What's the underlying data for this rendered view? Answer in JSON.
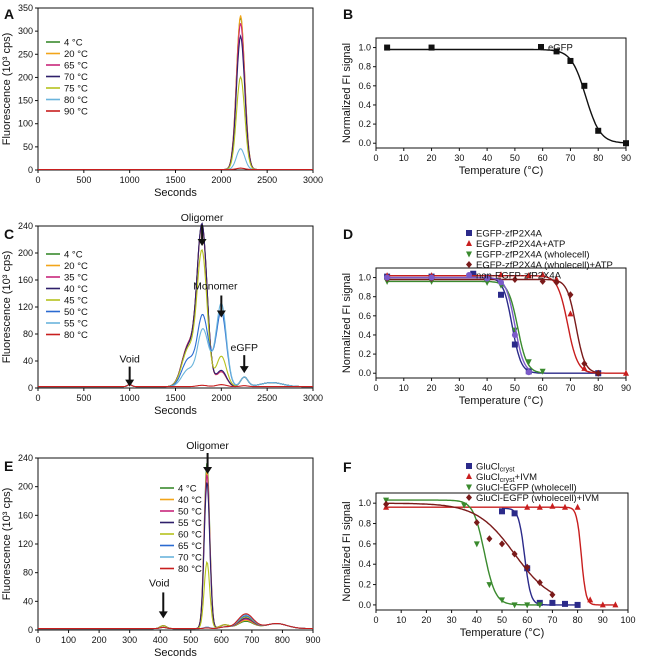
{
  "chart_data": [
    {
      "panel": "A",
      "type": "line",
      "xlabel": "Seconds",
      "ylabel": "Fluorescence (10³ cps)",
      "xlim": [
        0,
        3000
      ],
      "ylim": [
        0,
        350
      ],
      "xticks": [
        0,
        500,
        1000,
        1500,
        2000,
        2500,
        3000
      ],
      "yticks": [
        0,
        50,
        100,
        150,
        200,
        250,
        300,
        350
      ],
      "legend": "top-left",
      "peak": {
        "center": 2210,
        "sigma": 45
      },
      "series": [
        {
          "name": "4 °C",
          "color": "#3a8a2e",
          "peak": 330
        },
        {
          "name": "20 °C",
          "color": "#f2a51a",
          "peak": 333
        },
        {
          "name": "65 °C",
          "color": "#c8277b",
          "peak": 316
        },
        {
          "name": "70 °C",
          "color": "#2e1f6b",
          "peak": 288
        },
        {
          "name": "75 °C",
          "color": "#b6c21e",
          "peak": 200
        },
        {
          "name": "80 °C",
          "color": "#6ab4dc",
          "peak": 45
        },
        {
          "name": "90 °C",
          "color": "#c81e1e",
          "peak": 3
        }
      ]
    },
    {
      "panel": "B",
      "type": "scatter",
      "xlabel": "Temperature (°C)",
      "ylabel": "Normalized FI signal",
      "xlim": [
        0,
        90
      ],
      "ylim": [
        -0.05,
        1.1
      ],
      "xticks": [
        0,
        10,
        20,
        30,
        40,
        50,
        60,
        70,
        80,
        90
      ],
      "yticks": [
        0.0,
        0.2,
        0.4,
        0.6,
        0.8,
        1.0
      ],
      "legend": "top-right",
      "series": [
        {
          "name": "eGFP",
          "color": "#111111",
          "marker": "square",
          "x": [
            4,
            20,
            65,
            70,
            75,
            80,
            90
          ],
          "y": [
            1.0,
            1.0,
            0.96,
            0.86,
            0.6,
            0.13,
            0.0
          ],
          "fit": {
            "tm": 75.5,
            "k": 2.6,
            "top": 0.98,
            "bottom": 0.0
          }
        }
      ]
    },
    {
      "panel": "C",
      "type": "line",
      "xlabel": "Seconds",
      "ylabel": "Fluorescence (10³ cps)",
      "xlim": [
        0,
        3000
      ],
      "ylim": [
        0,
        240
      ],
      "xticks": [
        0,
        500,
        1000,
        1500,
        2000,
        2500,
        3000
      ],
      "yticks": [
        0,
        40,
        80,
        120,
        160,
        200,
        240
      ],
      "legend": "top-left",
      "annotations": [
        {
          "label": "Oligomer",
          "x": 1790,
          "y": 240
        },
        {
          "label": "Monomer",
          "x": 2000,
          "y": 140
        },
        {
          "label": "eGFP",
          "x": 2250,
          "y": 25
        },
        {
          "label": "Void",
          "x": 1000,
          "y": 5
        }
      ],
      "series": [
        {
          "name": "4 °C",
          "color": "#3a8a2e",
          "olig": 235,
          "mono": 22,
          "shoulder": 60
        },
        {
          "name": "20 °C",
          "color": "#f2a51a",
          "olig": 232,
          "mono": 22,
          "shoulder": 60
        },
        {
          "name": "35 °C",
          "color": "#c8277b",
          "olig": 234,
          "mono": 22,
          "shoulder": 60
        },
        {
          "name": "40 °C",
          "color": "#2e1f6b",
          "olig": 236,
          "mono": 24,
          "shoulder": 58
        },
        {
          "name": "45 °C",
          "color": "#b6c21e",
          "olig": 197,
          "mono": 45,
          "shoulder": 55
        },
        {
          "name": "50 °C",
          "color": "#2a6bd1",
          "olig": 90,
          "mono": 110,
          "shoulder": 40
        },
        {
          "name": "55 °C",
          "color": "#6ab4dc",
          "olig": 70,
          "mono": 122,
          "shoulder": 25
        },
        {
          "name": "80 °C",
          "color": "#c81e1e",
          "olig": 2,
          "mono": 3,
          "shoulder": 0
        }
      ]
    },
    {
      "panel": "D",
      "type": "scatter",
      "xlabel": "Temperature (°C)",
      "ylabel": "Normalized FI signal",
      "xlim": [
        0,
        90
      ],
      "ylim": [
        -0.05,
        1.1
      ],
      "xticks": [
        0,
        10,
        20,
        30,
        40,
        50,
        60,
        70,
        80,
        90
      ],
      "yticks": [
        0.0,
        0.2,
        0.4,
        0.6,
        0.8,
        1.0
      ],
      "legend": "top-right",
      "series": [
        {
          "name": "EGFP-zfP2X4A",
          "color": "#2b2a8a",
          "marker": "square",
          "x": [
            4,
            20,
            35,
            40,
            45,
            50,
            55,
            80
          ],
          "y": [
            1.01,
            1.01,
            1.04,
            1.0,
            0.82,
            0.3,
            0.02,
            0.0
          ],
          "fit": {
            "tm": 49,
            "k": 1.6,
            "top": 1.0,
            "bottom": 0.0
          }
        },
        {
          "name": "EGFP-zfP2X4A+ATP",
          "color": "#c81e1e",
          "marker": "triangle-up",
          "x": [
            4,
            20,
            45,
            55,
            60,
            65,
            70,
            75,
            90
          ],
          "y": [
            1.02,
            1.02,
            1.03,
            1.02,
            1.03,
            0.98,
            0.62,
            0.05,
            0.0
          ],
          "fit": {
            "tm": 69,
            "k": 1.8,
            "top": 1.02,
            "bottom": 0.0
          }
        },
        {
          "name": "EGFP-zfP2X4A (wholecell)",
          "color": "#3a8a2e",
          "marker": "triangle-down",
          "x": [
            4,
            20,
            40,
            45,
            50,
            55,
            60
          ],
          "y": [
            0.96,
            0.96,
            0.95,
            0.92,
            0.45,
            0.12,
            0.02
          ],
          "fit": {
            "tm": 51,
            "k": 1.7,
            "top": 0.96,
            "bottom": 0.0
          }
        },
        {
          "name": "EGFP-zfP2X4A (wholecell)+ATP",
          "color": "#7a1a1a",
          "marker": "diamond",
          "x": [
            4,
            20,
            50,
            60,
            65,
            70,
            75,
            80
          ],
          "y": [
            0.99,
            0.99,
            0.98,
            0.96,
            0.95,
            0.82,
            0.1,
            0.0
          ],
          "fit": {
            "tm": 72,
            "k": 1.6,
            "top": 0.98,
            "bottom": 0.0
          }
        },
        {
          "name": "non-EGFP-zfP2X4A",
          "color": "#7b5bc9",
          "marker": "circle",
          "x": [
            4,
            20,
            40,
            45,
            50,
            55
          ],
          "y": [
            1.0,
            1.0,
            0.99,
            0.95,
            0.4,
            0.01
          ],
          "fit": {
            "tm": 50,
            "k": 1.6,
            "top": 1.0,
            "bottom": 0.0
          }
        }
      ]
    },
    {
      "panel": "E",
      "type": "line",
      "xlabel": "Seconds",
      "ylabel": "Fluorescence (10³ cps)",
      "xlim": [
        0,
        900
      ],
      "ylim": [
        0,
        240
      ],
      "xticks": [
        0,
        100,
        200,
        300,
        400,
        500,
        600,
        700,
        800,
        900
      ],
      "yticks": [
        0,
        40,
        80,
        120,
        160,
        200,
        240
      ],
      "legend": "top-left",
      "annotations": [
        {
          "label": "Oligomer",
          "x": 555,
          "y": 235
        },
        {
          "label": "Void",
          "x": 410,
          "y": 5
        }
      ],
      "series": [
        {
          "name": "4 °C",
          "color": "#3a8a2e",
          "peak": 232
        },
        {
          "name": "40 °C",
          "color": "#f2a51a",
          "peak": 222
        },
        {
          "name": "50 °C",
          "color": "#c8277b",
          "peak": 216
        },
        {
          "name": "55 °C",
          "color": "#2e1f6b",
          "peak": 205
        },
        {
          "name": "60 °C",
          "color": "#b6c21e",
          "peak": 93
        },
        {
          "name": "65 °C",
          "color": "#2a6bd1",
          "peak": 2
        },
        {
          "name": "70 °C",
          "color": "#6ab4dc",
          "peak": 2
        },
        {
          "name": "80 °C",
          "color": "#c81e1e",
          "peak": 1
        }
      ]
    },
    {
      "panel": "F",
      "type": "scatter",
      "xlabel": "Temperature (°C)",
      "ylabel": "Normalized FI signal",
      "xlim": [
        0,
        100
      ],
      "ylim": [
        -0.05,
        1.1
      ],
      "xticks": [
        0,
        10,
        20,
        30,
        40,
        50,
        60,
        70,
        80,
        90,
        100
      ],
      "yticks": [
        0.0,
        0.2,
        0.4,
        0.6,
        0.8,
        1.0
      ],
      "legend": "top-right",
      "series": [
        {
          "name": "GluCl",
          "sub": "cryst",
          "suffix": "",
          "color": "#2b2a8a",
          "marker": "square",
          "x": [
            50,
            55,
            60,
            65,
            70,
            75,
            80
          ],
          "y": [
            0.92,
            0.9,
            0.36,
            0.02,
            0.02,
            0.01,
            0.0
          ],
          "fit": {
            "tm": 59,
            "k": 1.2,
            "top": 0.95,
            "bottom": 0.0
          }
        },
        {
          "name": "GluCl",
          "sub": "cryst",
          "suffix": "+IVM",
          "color": "#c81e1e",
          "marker": "triangle-up",
          "x": [
            4,
            60,
            65,
            70,
            75,
            80,
            85,
            90,
            95
          ],
          "y": [
            0.96,
            0.96,
            0.96,
            0.97,
            0.96,
            0.96,
            0.05,
            0.0,
            0.0
          ],
          "fit": {
            "tm": 81.5,
            "k": 0.9,
            "top": 0.96,
            "bottom": 0.0
          }
        },
        {
          "name": "GluCl-EGFP (wholecell)",
          "sub": "",
          "suffix": "",
          "color": "#3a8a2e",
          "marker": "triangle-down",
          "x": [
            4,
            35,
            40,
            45,
            50,
            55,
            60,
            65
          ],
          "y": [
            1.03,
            0.98,
            0.6,
            0.2,
            0.05,
            0.0,
            0.0,
            0.0
          ],
          "fit": {
            "tm": 43,
            "k": 2.2,
            "top": 1.03,
            "bottom": 0.0
          }
        },
        {
          "name": "GluCl-EGFP (wholecell)+IVM",
          "sub": "",
          "suffix": "",
          "color": "#7a1a1a",
          "marker": "diamond",
          "x": [
            4,
            40,
            45,
            50,
            55,
            60,
            65,
            70
          ],
          "y": [
            0.99,
            0.81,
            0.65,
            0.6,
            0.5,
            0.37,
            0.22,
            0.1
          ],
          "fit": {
            "tm": 55,
            "k": 7.5,
            "top": 1.0,
            "bottom": 0.0
          }
        }
      ]
    }
  ]
}
